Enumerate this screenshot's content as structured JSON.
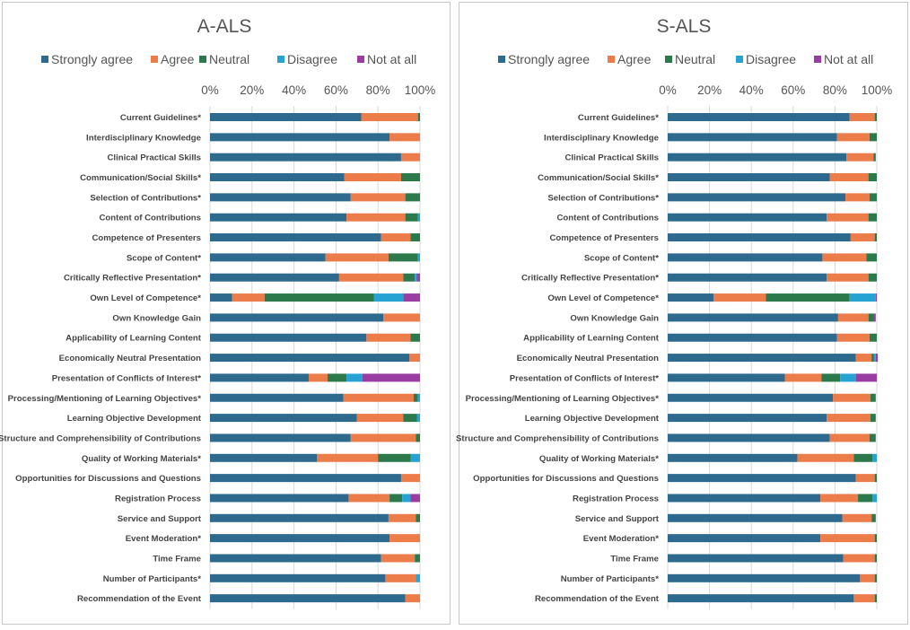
{
  "chart_data": [
    {
      "type": "bar",
      "stacked": true,
      "orientation": "horizontal",
      "title": "A-ALS",
      "xlim": [
        0,
        100
      ],
      "x_ticks": [
        "0%",
        "20%",
        "40%",
        "60%",
        "80%",
        "100%"
      ],
      "x_axis_position": "top",
      "legend": "top",
      "categories": [
        "Current Guidelines*",
        "Interdisciplinary Knowledge",
        "Clinical Practical Skills",
        "Communication/Social Skills*",
        "Selection of Contributions*",
        "Content of Contributions",
        "Competence of Presenters",
        "Scope of Content*",
        "Critically Reflective Presentation*",
        "Own Level of Competence*",
        "Own Knowledge Gain",
        "Applicability of Learning Content",
        "Economically Neutral Presentation",
        "Presentation of Conflicts of Interest*",
        "Processing/Mentioning of Learning Objectives*",
        "Learning Objective Development",
        "Structure and Comprehensibility of Contributions",
        "Quality of Working Materials*",
        "Opportunities for Discussions and Questions",
        "Registration Process",
        "Service and Support",
        "Event Moderation*",
        "Time Frame",
        "Number of Participants*",
        "Recommendation of the Event"
      ],
      "series": [
        {
          "name": "Strongly agree",
          "color": "#2e6a8e",
          "values": [
            72,
            85.5,
            91,
            64,
            67,
            65,
            81.5,
            55,
            61.5,
            10.5,
            82.5,
            74.5,
            95,
            47,
            63.5,
            70,
            67,
            51,
            91,
            66,
            85,
            85.5,
            81.5,
            83.5,
            93
          ]
        },
        {
          "name": "Agree",
          "color": "#ec7c4a",
          "values": [
            27,
            14.5,
            9,
            27,
            26,
            28,
            14,
            30,
            30.5,
            15.5,
            17.5,
            21,
            5,
            9,
            33.5,
            22,
            31,
            29,
            9,
            19.5,
            13,
            14.5,
            16,
            14.5,
            7
          ]
        },
        {
          "name": "Neutral",
          "color": "#2c7a4b",
          "values": [
            1,
            0,
            0,
            9,
            7,
            6,
            4.5,
            14,
            5.5,
            52,
            0,
            4.5,
            0,
            9,
            2,
            6.5,
            2,
            15.5,
            0,
            6,
            2,
            0,
            2.5,
            0,
            0
          ]
        },
        {
          "name": "Disagree",
          "color": "#27a3d3",
          "values": [
            0,
            0,
            0,
            0,
            0,
            1,
            0,
            1,
            1,
            14,
            0,
            0,
            0,
            7.5,
            1,
            1.5,
            0,
            4.5,
            0,
            4,
            0,
            0,
            0,
            2,
            0
          ]
        },
        {
          "name": "Not at all",
          "color": "#9a3da2",
          "values": [
            0,
            0,
            0,
            0,
            0,
            0,
            0,
            0,
            1.5,
            8,
            0,
            0,
            0,
            27.5,
            0,
            0,
            0,
            0,
            0,
            4.5,
            0,
            0,
            0,
            0,
            0
          ]
        }
      ]
    },
    {
      "type": "bar",
      "stacked": true,
      "orientation": "horizontal",
      "title": "S-ALS",
      "xlim": [
        0,
        100
      ],
      "x_ticks": [
        "0%",
        "20%",
        "40%",
        "60%",
        "80%",
        "100%"
      ],
      "x_axis_position": "top",
      "legend": "top",
      "categories": [
        "Current Guidelines*",
        "Interdisciplinary Knowledge",
        "Clinical Practical Skills",
        "Communication/Social Skills*",
        "Selection of Contributions*",
        "Content of Contributions",
        "Competence of Presenters",
        "Scope of Content*",
        "Critically Reflective Presentation*",
        "Own Level of Competence*",
        "Own Knowledge Gain",
        "Applicability of Learning Content",
        "Economically Neutral Presentation",
        "Presentation of Conflicts of Interest*",
        "Processing/Mentioning of Learning Objectives*",
        "Learning Objective Development",
        "Structure and Comprehensibility of Contributions",
        "Quality of Working Materials*",
        "Opportunities for Discussions and Questions",
        "Registration Process",
        "Service and Support",
        "Event Moderation*",
        "Time Frame",
        "Number of Participants*",
        "Recommendation of the Event"
      ],
      "series": [
        {
          "name": "Strongly agree",
          "color": "#2e6a8e",
          "values": [
            87,
            81,
            85.5,
            77.5,
            85,
            76,
            87.5,
            74,
            76,
            22,
            81.5,
            81,
            90,
            56,
            79,
            76,
            77.5,
            62,
            90,
            73,
            83.5,
            73,
            84,
            92,
            89
          ]
        },
        {
          "name": "Agree",
          "color": "#ec7c4a",
          "values": [
            12,
            15.5,
            13,
            18.5,
            11.5,
            20,
            11.5,
            21,
            20,
            25,
            14.5,
            15.5,
            7.5,
            17.5,
            18,
            21,
            19,
            27,
            9,
            18,
            14,
            26,
            15,
            7,
            10
          ]
        },
        {
          "name": "Neutral",
          "color": "#2c7a4b",
          "values": [
            1,
            3.5,
            1,
            4,
            3.5,
            4,
            1,
            5,
            4,
            40,
            2.5,
            3.5,
            1,
            9,
            2.5,
            2.5,
            3,
            9,
            1,
            7,
            2,
            1,
            1,
            1,
            1
          ]
        },
        {
          "name": "Disagree",
          "color": "#27a3d3",
          "values": [
            0,
            0,
            0,
            0,
            0,
            0,
            0,
            0,
            0,
            12.5,
            0,
            0,
            1,
            7.5,
            0,
            0,
            0,
            2,
            0,
            2,
            0,
            0,
            0,
            0,
            0
          ]
        },
        {
          "name": "Not at all",
          "color": "#9a3da2",
          "values": [
            0,
            0,
            0,
            0,
            0,
            0,
            0,
            0,
            0,
            0.5,
            1,
            0,
            1,
            10,
            0,
            0,
            0,
            0,
            0,
            0,
            0,
            0,
            0,
            0,
            0
          ]
        }
      ]
    }
  ]
}
